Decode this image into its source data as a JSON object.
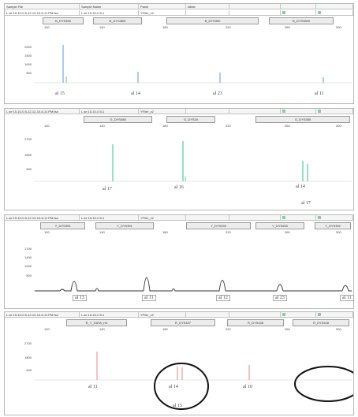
{
  "panels": [
    {
      "row1": [
        "Sample File",
        "Sample Name",
        "Panel",
        "Allele",
        "",
        "",
        ""
      ],
      "row2": [
        "L.se 15-10-0.5-12-12-10-6-11 PM.fsa",
        "L.se 15-10-0.5-1",
        "YFiler_v2",
        "",
        "",
        "",
        ""
      ],
      "dyes": [
        "B_DYS456",
        "B_DYS389I",
        "B_DYS390",
        "B_DYS389II"
      ],
      "x_ticks": [
        "100",
        "140",
        "180",
        "220",
        "260",
        "300"
      ],
      "y_ticks": [
        "2000",
        "1500",
        "1000",
        "500"
      ],
      "alleles": [
        "al 15",
        "al 14",
        "al 23",
        "al 11"
      ]
    },
    {
      "row1": [
        "L.se 15-10-0.5-12-12-10-6-11 PM.fsa",
        "L.se 15-10-0.5-1",
        "YFiler_v2",
        "",
        "",
        "",
        ""
      ],
      "dyes": [
        "G_DYS458",
        "G_DYS19",
        "G_DYS385"
      ],
      "x_ticks": [
        "100",
        "140",
        "180",
        "220",
        "260",
        "300"
      ],
      "y_ticks": [
        "2700",
        "1800",
        "900"
      ],
      "alleles": [
        "al 17",
        "al 16",
        "al 14",
        "al 17"
      ]
    },
    {
      "row1": [
        "L.se 15-10-0.5-12-12-10-6-11 PM.fsa",
        "L.se 15-10-0.5-1",
        "YFiler_v2",
        "",
        "",
        "",
        ""
      ],
      "dyes": [
        "Y_DYS393",
        "Y_DYS391",
        "Y_DYS439",
        "Y_DYS635",
        "Y_DYS392"
      ],
      "x_ticks": [
        "100",
        "140",
        "180",
        "220",
        "260",
        "300"
      ],
      "y_ticks": [
        "1700",
        "1400",
        "1000",
        "500"
      ],
      "alleles": [
        "al 13",
        "al 11",
        "al 12",
        "al 23",
        "al 11"
      ]
    },
    {
      "row1": [
        "L.se 15-10-0.5-12-12-10-6-11 PM.fsa",
        "L.se 15-10-0.5-1",
        "YFiler_v2",
        "",
        "",
        "",
        ""
      ],
      "dyes": [
        "R_Y_GATA_H4",
        "R_DYS437",
        "R_DYS438",
        "R_DYS448"
      ],
      "x_ticks": [
        "100",
        "140",
        "180",
        "220",
        "260",
        "300"
      ],
      "y_ticks": [
        "2700",
        "1800",
        "900"
      ],
      "alleles": [
        "al 11",
        "al 14",
        "al 15",
        "al 10"
      ]
    }
  ],
  "colors": {
    "blue": "#5a9bd6",
    "green": "#34c08a",
    "black": "#333333",
    "red": "#e8888a",
    "accent": "#8ecaa0"
  }
}
